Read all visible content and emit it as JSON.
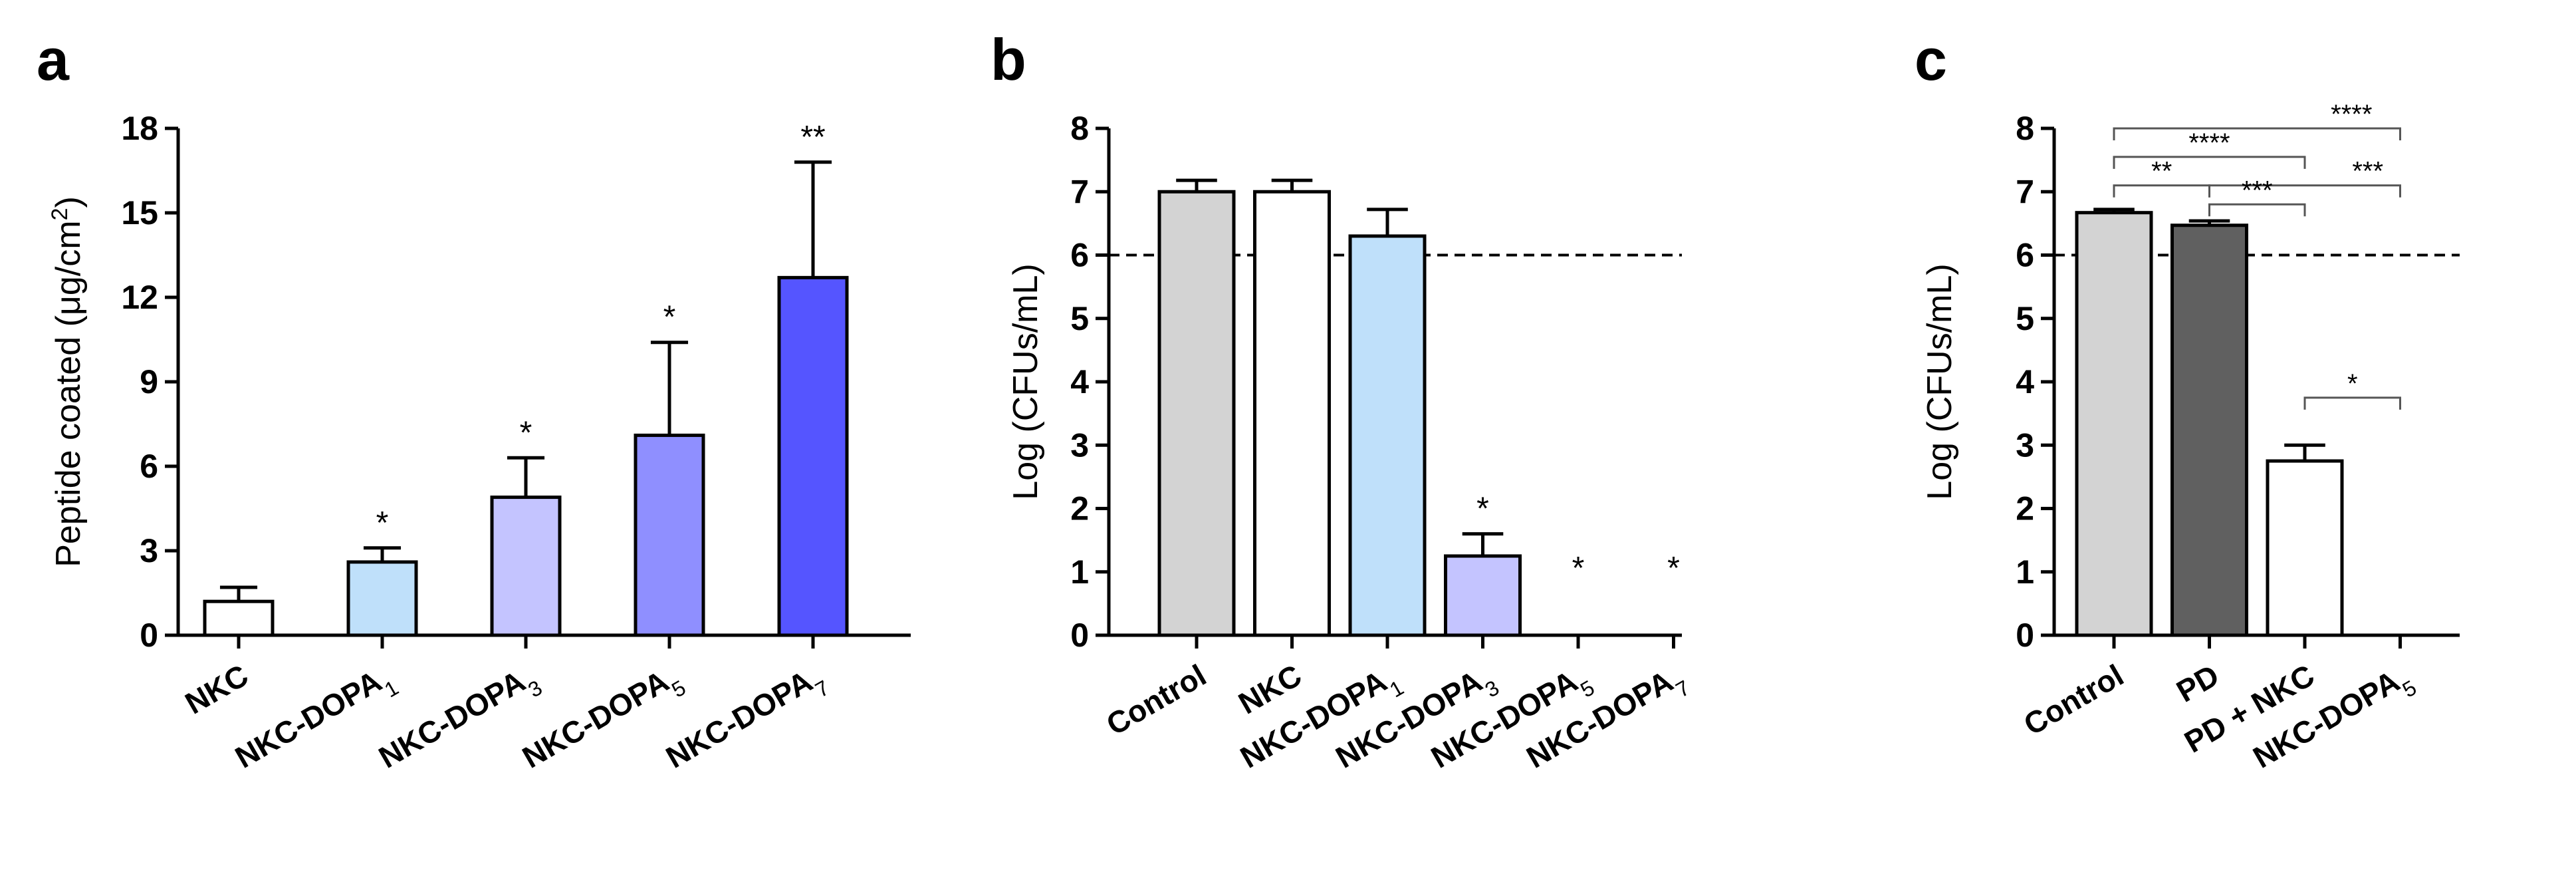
{
  "chart_data": [
    {
      "type": "bar",
      "panel": "a",
      "ylabel_main": "Peptide coated (",
      "ylabel_unit": "μg/cm",
      "ylabel_exp": "2",
      "ylabel_close": ")",
      "ylim": [
        0,
        18
      ],
      "yticks": [
        0,
        3,
        6,
        9,
        12,
        15,
        18
      ],
      "categories": [
        {
          "base": "NKC",
          "sub": ""
        },
        {
          "base": "NKC-DOPA",
          "sub": "1"
        },
        {
          "base": "NKC-DOPA",
          "sub": "3"
        },
        {
          "base": "NKC-DOPA",
          "sub": "5"
        },
        {
          "base": "NKC-DOPA",
          "sub": "7"
        }
      ],
      "values": [
        1.2,
        2.6,
        4.9,
        7.1,
        12.7
      ],
      "errors": [
        0.5,
        0.5,
        1.4,
        3.3,
        4.1
      ],
      "colors": [
        "#ffffff",
        "#bfe0fa",
        "#c4c4ff",
        "#8f8fff",
        "#5555ff"
      ],
      "significance": [
        "",
        "*",
        "*",
        "*",
        "**"
      ]
    },
    {
      "type": "bar",
      "panel": "b",
      "ylabel": "Log (CFUs/mL)",
      "ylim": [
        0,
        8
      ],
      "yticks": [
        0,
        1,
        2,
        3,
        4,
        5,
        6,
        7,
        8
      ],
      "threshold": 6,
      "categories": [
        {
          "base": "Control",
          "sub": ""
        },
        {
          "base": "NKC",
          "sub": ""
        },
        {
          "base": "NKC-DOPA",
          "sub": "1"
        },
        {
          "base": "NKC-DOPA",
          "sub": "3"
        },
        {
          "base": "NKC-DOPA",
          "sub": "5"
        },
        {
          "base": "NKC-DOPA",
          "sub": "7"
        }
      ],
      "values": [
        7.0,
        7.0,
        6.3,
        1.25,
        0,
        0
      ],
      "errors": [
        0.18,
        0.18,
        0.42,
        0.35,
        0,
        0
      ],
      "colors": [
        "#d3d3d3",
        "#ffffff",
        "#bfe0fa",
        "#c4c4ff",
        "#ffffff",
        "#ffffff"
      ],
      "significance": [
        "",
        "",
        "",
        "*",
        "*",
        "*"
      ]
    },
    {
      "type": "bar",
      "panel": "c",
      "ylabel": "Log (CFUs/mL)",
      "ylim": [
        0,
        8
      ],
      "yticks": [
        0,
        1,
        2,
        3,
        4,
        5,
        6,
        7,
        8
      ],
      "threshold": 6,
      "categories": [
        {
          "base": "Control",
          "sub": ""
        },
        {
          "base": "PD",
          "sub": ""
        },
        {
          "base": "PD + NKC",
          "sub": ""
        },
        {
          "base": "NKC-DOPA",
          "sub": "5"
        }
      ],
      "values": [
        6.67,
        6.47,
        2.75,
        0
      ],
      "errors": [
        0.05,
        0.07,
        0.25,
        0
      ],
      "colors": [
        "#d3d3d3",
        "#606060",
        "#ffffff",
        "#ffffff"
      ],
      "brackets": [
        {
          "from": 0,
          "to": 3,
          "y": 8.0,
          "label": "****",
          "label_at": "right"
        },
        {
          "from": 0,
          "to": 2,
          "y": 7.55,
          "label": "****",
          "label_at": "mid"
        },
        {
          "from": 0,
          "to": 1,
          "y": 7.1,
          "label": "**",
          "label_at": "mid"
        },
        {
          "from": 1,
          "to": 3,
          "y": 7.1,
          "label": "***",
          "label_at": "right"
        },
        {
          "from": 1,
          "to": 2,
          "y": 6.8,
          "label": "***",
          "label_at": "mid"
        },
        {
          "from": 2,
          "to": 3,
          "y": 3.75,
          "label": "*",
          "label_at": "mid"
        }
      ]
    }
  ]
}
